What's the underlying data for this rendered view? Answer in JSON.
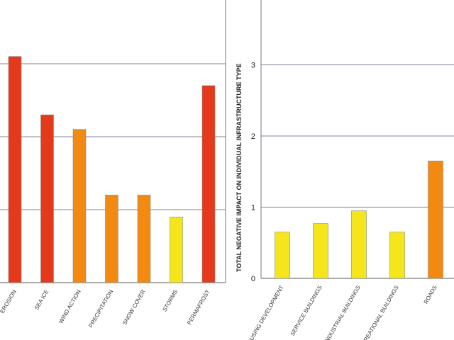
{
  "chart_data": [
    {
      "type": "bar",
      "categories": [
        "EROSION",
        "SEA ICE",
        "WIND ACTION",
        "PRECIPITATION",
        "SNOW COVER",
        "STORMS",
        "PERMAFROST"
      ],
      "values": [
        3.1,
        2.3,
        2.1,
        1.2,
        1.2,
        0.9,
        2.7
      ],
      "bar_colors": [
        "#e5391c",
        "#e5391c",
        "#f28a12",
        "#f28a12",
        "#f28a12",
        "#f5e61c",
        "#e5391c"
      ],
      "ylim": [
        0,
        4
      ],
      "grid": true
    },
    {
      "type": "bar",
      "categories": [
        "HOUSING DEVELOPMENT",
        "SERVICE BUILDINGS",
        "INDUSTRIAL BUILDINGS",
        "RECREATIONAL BUILDINGS",
        "ROADS"
      ],
      "values": [
        0.65,
        0.77,
        0.95,
        0.65,
        1.65
      ],
      "bar_colors": [
        "#f5e61c",
        "#f5e61c",
        "#f5e61c",
        "#f5e61c",
        "#f28a12"
      ],
      "yticks": [
        "0",
        "1",
        "2",
        "3"
      ],
      "ylim": [
        0,
        4
      ],
      "ylabel": "TOTAL NEGATIVE IMPACT ON INDIVIDUAL INFRASTRUCTURE TYPE",
      "grid": true
    }
  ]
}
